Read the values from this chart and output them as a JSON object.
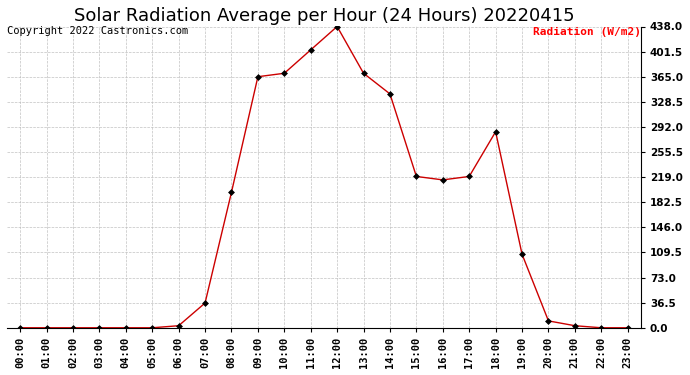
{
  "title": "Solar Radiation Average per Hour (24 Hours) 20220415",
  "copyright_text": "Copyright 2022 Castronics.com",
  "ylabel": "Radiation (W/m2)",
  "ylabel_color": "#ff0000",
  "line_color": "#cc0000",
  "marker_color": "#000000",
  "background_color": "#ffffff",
  "grid_color": "#bbbbbb",
  "hours": [
    0,
    1,
    2,
    3,
    4,
    5,
    6,
    7,
    8,
    9,
    10,
    11,
    12,
    13,
    14,
    15,
    16,
    17,
    18,
    19,
    20,
    21,
    22,
    23
  ],
  "values": [
    0,
    0,
    0,
    0,
    0,
    0,
    3,
    36,
    197,
    365,
    370,
    404,
    438,
    370,
    340,
    220,
    215,
    220,
    285,
    107,
    10,
    3,
    0,
    0
  ],
  "yticks": [
    0.0,
    36.5,
    73.0,
    109.5,
    146.0,
    182.5,
    219.0,
    255.5,
    292.0,
    328.5,
    365.0,
    401.5,
    438.0
  ],
  "ylim": [
    0,
    438.0
  ],
  "xlim": [
    -0.5,
    23.5
  ],
  "title_fontsize": 13,
  "label_fontsize": 8,
  "tick_fontsize": 7.5,
  "copyright_fontsize": 7.5
}
